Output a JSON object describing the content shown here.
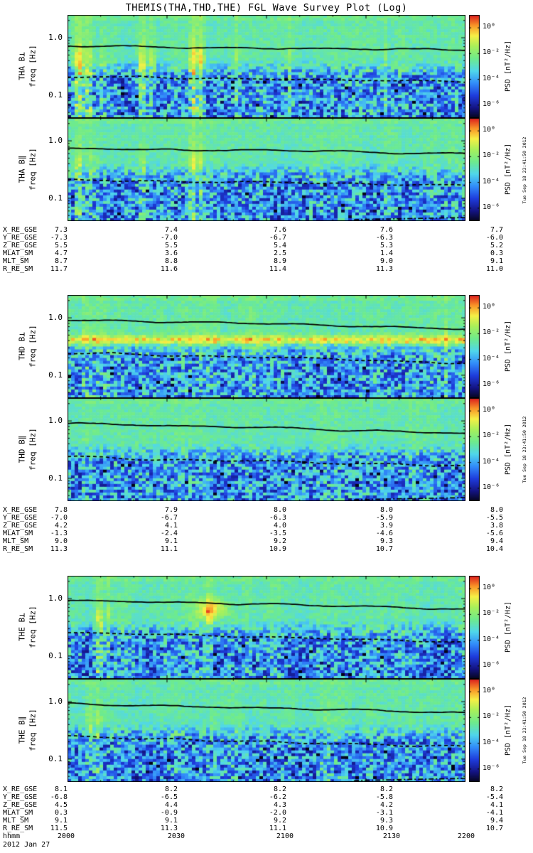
{
  "title": "THEMIS(THA,THD,THE) FGL Wave Survey Plot (Log)",
  "yaxis": {
    "label": "freq [Hz]",
    "ticks": [
      "1.0",
      "0.1"
    ]
  },
  "colorbar": {
    "label": "PSD [nT²/Hz]",
    "ticks": [
      "10⁰",
      "10⁻²",
      "10⁻⁴",
      "10⁻⁶"
    ]
  },
  "timestamp": "Tue Sep 18 23:41:50 2012",
  "footer": {
    "label": "hhmm",
    "ticks": [
      "2000",
      "2030",
      "2100",
      "2130",
      "2200"
    ],
    "date": "2012 Jan 27"
  },
  "sections": [
    {
      "name": "THA",
      "panels": [
        {
          "label": "THA B⊥"
        },
        {
          "label": "THA B∥"
        }
      ],
      "ephemeris": {
        "rows": [
          {
            "label": "X_RE_GSE",
            "values": [
              "7.3",
              "7.4",
              "7.6",
              "7.6",
              "7.7"
            ]
          },
          {
            "label": "Y_RE_GSE",
            "values": [
              "-7.3",
              "-7.0",
              "-6.7",
              "-6.3",
              "-6.0"
            ]
          },
          {
            "label": "Z_RE_GSE",
            "values": [
              "5.5",
              "5.5",
              "5.4",
              "5.3",
              "5.2"
            ]
          },
          {
            "label": "MLAT_SM",
            "values": [
              "4.7",
              "3.6",
              "2.5",
              "1.4",
              "0.3"
            ]
          },
          {
            "label": "MLT_SM",
            "values": [
              "8.7",
              "8.8",
              "8.9",
              "9.0",
              "9.1"
            ]
          },
          {
            "label": "R_RE_SM",
            "values": [
              "11.7",
              "11.6",
              "11.4",
              "11.3",
              "11.0"
            ]
          }
        ]
      }
    },
    {
      "name": "THD",
      "panels": [
        {
          "label": "THD B⊥"
        },
        {
          "label": "THD B∥"
        }
      ],
      "ephemeris": {
        "rows": [
          {
            "label": "X_RE_GSE",
            "values": [
              "7.8",
              "7.9",
              "8.0",
              "8.0",
              "8.0"
            ]
          },
          {
            "label": "Y_RE_GSE",
            "values": [
              "-7.0",
              "-6.7",
              "-6.3",
              "-5.9",
              "-5.5"
            ]
          },
          {
            "label": "Z_RE_GSE",
            "values": [
              "4.2",
              "4.1",
              "4.0",
              "3.9",
              "3.8"
            ]
          },
          {
            "label": "MLAT_SM",
            "values": [
              "-1.3",
              "-2.4",
              "-3.5",
              "-4.6",
              "-5.6"
            ]
          },
          {
            "label": "MLT_SM",
            "values": [
              "9.0",
              "9.1",
              "9.2",
              "9.3",
              "9.4"
            ]
          },
          {
            "label": "R_RE_SM",
            "values": [
              "11.3",
              "11.1",
              "10.9",
              "10.7",
              "10.4"
            ]
          }
        ]
      }
    },
    {
      "name": "THE",
      "panels": [
        {
          "label": "THE B⊥"
        },
        {
          "label": "THE B∥"
        }
      ],
      "ephemeris": {
        "rows": [
          {
            "label": "X_RE_GSE",
            "values": [
              "8.1",
              "8.2",
              "8.2",
              "8.2",
              "8.2"
            ]
          },
          {
            "label": "Y_RE_GSE",
            "values": [
              "-6.8",
              "-6.5",
              "-6.2",
              "-5.8",
              "-5.4"
            ]
          },
          {
            "label": "Z_RE_GSE",
            "values": [
              "4.5",
              "4.4",
              "4.3",
              "4.2",
              "4.1"
            ]
          },
          {
            "label": "MLAT_SM",
            "values": [
              "0.3",
              "-0.9",
              "-2.0",
              "-3.1",
              "-4.1"
            ]
          },
          {
            "label": "MLT_SM",
            "values": [
              "9.1",
              "9.1",
              "9.2",
              "9.3",
              "9.4"
            ]
          },
          {
            "label": "R_RE_SM",
            "values": [
              "11.5",
              "11.3",
              "11.1",
              "10.9",
              "10.7"
            ]
          }
        ]
      }
    }
  ],
  "chart_data": {
    "type": "heatmap",
    "title": "THEMIS(THA,THD,THE) FGL Wave Survey Plot (Log)",
    "x_axis": {
      "label": "hhmm",
      "ticks": [
        "2000",
        "2030",
        "2100",
        "2130",
        "2200"
      ],
      "date": "2012 Jan 27"
    },
    "y_axis": {
      "label": "freq [Hz]",
      "scale": "log",
      "range_hz": [
        0.04,
        2.5
      ],
      "major_ticks_hz": [
        1.0,
        0.1
      ]
    },
    "z_axis": {
      "label": "PSD [nT²/Hz]",
      "scale": "log",
      "colorbar_top_log10": 1,
      "colorbar_bottom_log10": -7,
      "colorbar_ticks_log10": [
        0,
        -2,
        -4,
        -6
      ]
    },
    "ephemeris_variables": [
      "X_RE_GSE",
      "Y_RE_GSE",
      "Z_RE_GSE",
      "MLAT_SM",
      "MLT_SM",
      "R_RE_SM"
    ],
    "colormap_stops": [
      [
        0,
        "#050519"
      ],
      [
        0.1,
        "#141482"
      ],
      [
        0.22,
        "#1e3cdc"
      ],
      [
        0.34,
        "#328cfa"
      ],
      [
        0.46,
        "#50d7eb"
      ],
      [
        0.58,
        "#6eeb8c"
      ],
      [
        0.7,
        "#aaf05a"
      ],
      [
        0.8,
        "#f5f046"
      ],
      [
        0.9,
        "#fa9628"
      ],
      [
        1,
        "#dc1e1e"
      ]
    ],
    "texture": {
      "nx": 112,
      "ny": 36
    },
    "panels": [
      {
        "spacecraft": "THA",
        "component": "B⊥",
        "seed": 101,
        "solid": [
          0.3,
          0.35
        ],
        "dashed": [
          0.6,
          0.655
        ],
        "streaks": [
          [
            0.025,
            0.012,
            0.3
          ],
          [
            0.05,
            0.008,
            0.22
          ],
          [
            0.085,
            0.006,
            0.16
          ],
          [
            0.185,
            0.01,
            0.26
          ],
          [
            0.21,
            0.007,
            0.2
          ],
          [
            0.315,
            0.012,
            0.34
          ],
          [
            0.335,
            0.008,
            0.28
          ],
          [
            0.425,
            0.006,
            0.14
          ],
          [
            0.56,
            0.005,
            0.1
          ],
          [
            0.8,
            0.005,
            0.12
          ]
        ],
        "band": null,
        "blobs": [],
        "bottom_dash": false
      },
      {
        "spacecraft": "THA",
        "component": "B∥",
        "seed": 112,
        "solid": [
          0.3,
          0.35
        ],
        "dashed": [
          0.6,
          0.655
        ],
        "streaks": [
          [
            0.025,
            0.01,
            0.2
          ],
          [
            0.05,
            0.006,
            0.12
          ],
          [
            0.185,
            0.008,
            0.16
          ],
          [
            0.315,
            0.01,
            0.24
          ],
          [
            0.335,
            0.006,
            0.18
          ]
        ],
        "band": null,
        "blobs": [],
        "bottom_dash": true
      },
      {
        "spacecraft": "THD",
        "component": "B⊥",
        "seed": 203,
        "solid": [
          0.245,
          0.335
        ],
        "dashed": [
          0.565,
          0.65
        ],
        "streaks": [
          [
            0.04,
            0.006,
            0.14
          ],
          [
            0.955,
            0.005,
            0.1
          ]
        ],
        "band": [
          0.435,
          0.045,
          0.26
        ],
        "blobs": [],
        "bottom_dash": false
      },
      {
        "spacecraft": "THD",
        "component": "B∥",
        "seed": 204,
        "solid": [
          0.245,
          0.335
        ],
        "dashed": [
          0.565,
          0.65
        ],
        "streaks": [
          [
            0.04,
            0.005,
            0.1
          ]
        ],
        "band": null,
        "blobs": [],
        "bottom_dash": true
      },
      {
        "spacecraft": "THE",
        "component": "B⊥",
        "seed": 305,
        "solid": [
          0.24,
          0.335
        ],
        "dashed": [
          0.555,
          0.65
        ],
        "streaks": [
          [
            0.075,
            0.01,
            0.24
          ],
          [
            0.1,
            0.006,
            0.14
          ],
          [
            0.355,
            0.007,
            0.14
          ]
        ],
        "band": null,
        "blobs": [
          [
            0.36,
            0.32,
            0.035,
            0.1,
            0.3
          ]
        ],
        "bottom_dash": false
      },
      {
        "spacecraft": "THE",
        "component": "B∥",
        "seed": 306,
        "solid": [
          0.24,
          0.335
        ],
        "dashed": [
          0.555,
          0.65
        ],
        "streaks": [
          [
            0.05,
            0.007,
            0.16
          ],
          [
            0.075,
            0.006,
            0.13
          ]
        ],
        "band": null,
        "blobs": [],
        "bottom_dash": true
      }
    ]
  }
}
